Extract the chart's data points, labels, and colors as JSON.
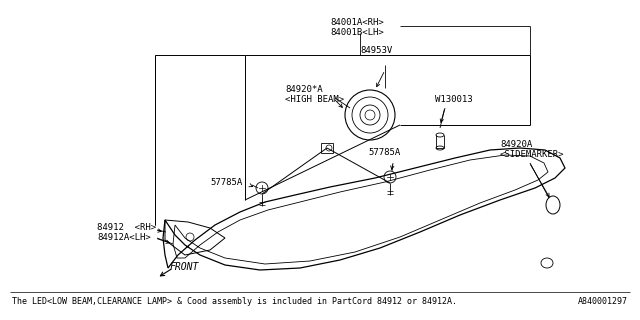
{
  "bg_color": "#ffffff",
  "line_color": "#000000",
  "footnote": "The LED<LOW BEAM,CLEARANCE LAMP> & Cood assembly is included in PartCord 84912 or 84912A.",
  "part_id": "A840001297",
  "labels": {
    "84001A_RH": "84001A<RH>",
    "84001B_LH": "84001B<LH>",
    "84953V": "84953V",
    "84920_A_HIGH": "84920*A\n<HIGH BEAM>",
    "57785A_left": "57785A",
    "57785A_right": "57785A",
    "W130013": "W130013",
    "84920A_SIDE": "84920A\n<SIDEMARKER>",
    "84912_RH": "84912  <RH>",
    "84912A_LH": "84912A<LH>",
    "FRONT": "FRONT"
  },
  "font_size": 6.5,
  "footnote_size": 6.0
}
